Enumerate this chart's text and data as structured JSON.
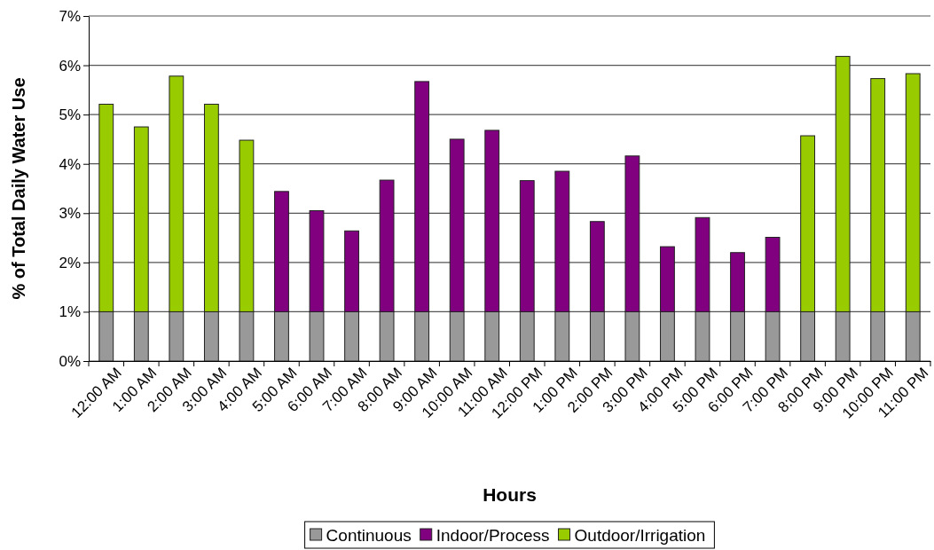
{
  "chart_data": {
    "type": "bar",
    "xlabel": "Hours",
    "ylabel": "% of Total Daily Water Use",
    "categories": [
      "12:00 AM",
      "1:00 AM",
      "2:00 AM",
      "3:00 AM",
      "4:00 AM",
      "5:00 AM",
      "6:00 AM",
      "7:00 AM",
      "8:00 AM",
      "9:00 AM",
      "10:00 AM",
      "11:00 AM",
      "12:00 PM",
      "1:00 PM",
      "2:00 PM",
      "3:00 PM",
      "4:00 PM",
      "5:00 PM",
      "6:00 PM",
      "7:00 PM",
      "8:00 PM",
      "9:00 PM",
      "10:00 PM",
      "11:00 PM"
    ],
    "stacked": true,
    "series": [
      {
        "name": "Continuous",
        "color": "#999999",
        "values": [
          1,
          1,
          1,
          1,
          1,
          1,
          1,
          1,
          1,
          1,
          1,
          1,
          1,
          1,
          1,
          1,
          1,
          1,
          1,
          1,
          1,
          1,
          1,
          1
        ]
      },
      {
        "name": "Indoor/Process",
        "color": "#800080",
        "values": [
          null,
          null,
          null,
          null,
          null,
          2.44,
          2.05,
          1.64,
          2.67,
          4.67,
          3.5,
          3.68,
          2.66,
          2.85,
          1.83,
          3.16,
          1.32,
          1.91,
          1.2,
          1.51,
          null,
          null,
          null,
          null
        ]
      },
      {
        "name": "Outdoor/Irrigation",
        "color": "#99cc00",
        "values": [
          4.21,
          3.75,
          4.78,
          4.21,
          3.48,
          null,
          null,
          null,
          null,
          null,
          null,
          null,
          null,
          null,
          null,
          null,
          null,
          null,
          null,
          null,
          3.57,
          5.18,
          4.73,
          4.83
        ]
      }
    ],
    "ylim": [
      0,
      7
    ],
    "yticks": [
      {
        "value": 0,
        "label": "0%"
      },
      {
        "value": 1,
        "label": "1%"
      },
      {
        "value": 2,
        "label": "2%"
      },
      {
        "value": 3,
        "label": "3%"
      },
      {
        "value": 4,
        "label": "4%"
      },
      {
        "value": 5,
        "label": "5%"
      },
      {
        "value": 6,
        "label": "6%"
      },
      {
        "value": 7,
        "label": "7%"
      }
    ],
    "grid": "y",
    "legend": "bottom"
  }
}
